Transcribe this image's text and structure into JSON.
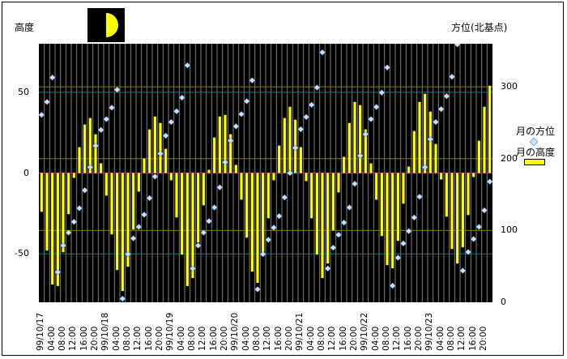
{
  "chart_data": {
    "type": "bar+scatter",
    "ylabel_left": "高度",
    "ylabel_right": "方位(北基点)",
    "ylim_left": [
      -80,
      80
    ],
    "ylim_right": [
      0,
      360
    ],
    "yticks_left": [
      50,
      0,
      -50
    ],
    "yticks_right": [
      300,
      200,
      100,
      0
    ],
    "x_tick_labels": [
      "99/10/17",
      "04:00",
      "08:00",
      "12:00",
      "16:00",
      "20:00",
      "99/10/18",
      "04:00",
      "08:00",
      "12:00",
      "16:00",
      "20:00",
      "99/10/19",
      "04:00",
      "08:00",
      "12:00",
      "16:00",
      "20:00",
      "99/10/20",
      "04:00",
      "08:00",
      "12:00",
      "16:00",
      "20:00",
      "99/10/21",
      "04:00",
      "08:00",
      "12:00",
      "16:00",
      "20:00",
      "99/10/22",
      "04:00",
      "08:00",
      "12:00",
      "16:00",
      "20:00",
      "99/10/23",
      "04:00",
      "08:00",
      "12:00",
      "16:00",
      "20:00"
    ],
    "grid": true,
    "legend_placement": "right",
    "series": [
      {
        "name": "月の方位",
        "type": "scatter",
        "axis": "right",
        "marker": "diamond",
        "color": "#c8e0ff",
        "values": [
          261,
          279,
          313,
          42,
          79,
          97,
          112,
          131,
          156,
          188,
          218,
          240,
          255,
          271,
          296,
          5,
          67,
          89,
          105,
          122,
          145,
          175,
          207,
          232,
          251,
          266,
          285,
          330,
          47,
          79,
          97,
          113,
          132,
          160,
          195,
          225,
          245,
          262,
          280,
          309,
          18,
          67,
          87,
          104,
          120,
          146,
          180,
          215,
          241,
          258,
          275,
          299,
          348,
          47,
          76,
          94,
          111,
          132,
          165,
          204,
          234,
          255,
          272,
          292,
          327,
          23,
          62,
          82,
          99,
          118,
          147,
          188,
          227,
          251,
          269,
          287,
          314,
          359,
          44,
          70,
          88,
          105,
          128,
          168
        ]
      },
      {
        "name": "月の高度",
        "type": "bar",
        "axis": "left",
        "color": "#ffff00",
        "values": [
          -24,
          -48,
          -69,
          -70,
          -49,
          -25.5,
          -3,
          16,
          30,
          34,
          24,
          6,
          -14,
          -38,
          -60,
          -73,
          -58,
          -35,
          -11.5,
          9,
          27,
          35,
          31,
          15,
          -4.5,
          -27.5,
          -50.5,
          -70,
          -65,
          -43,
          -20,
          2,
          22,
          35,
          36,
          24,
          5,
          -16.5,
          -40,
          -61,
          -68,
          -49,
          -28,
          -4.5,
          17,
          34,
          41,
          33,
          16,
          -5,
          -28,
          -50.5,
          -65,
          -56,
          -35.5,
          -12,
          10,
          31,
          44,
          42,
          27,
          6,
          -16.5,
          -39,
          -57,
          -59,
          -42,
          -19,
          4,
          26,
          44,
          49,
          38,
          18,
          -4,
          -27,
          -47,
          -56,
          -46,
          -26,
          -2.5,
          20,
          41,
          54
        ]
      }
    ],
    "colors": {
      "plot_bg": "#000000",
      "grid_vertical": "#808080",
      "grid_left": "#008080",
      "grid_right": "#808000"
    }
  },
  "moon_icon": "half-moon-icon"
}
